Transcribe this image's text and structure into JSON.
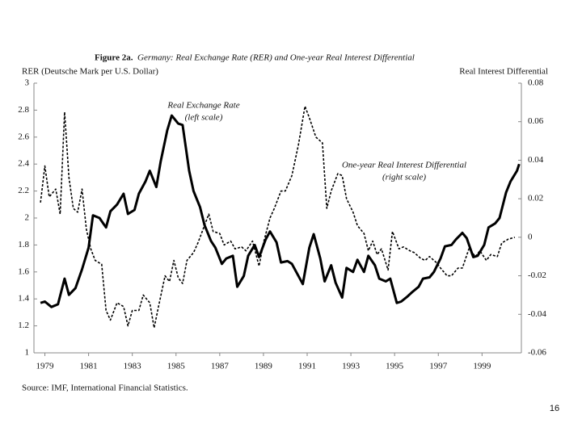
{
  "chart_data": {
    "type": "line",
    "title": "Figure 2a.",
    "subtitle": "Germany: Real Exchange Rate (RER) and One-year Real Interest Differential",
    "y_label": "RER (Deutsche Mark per U.S. Dollar)",
    "y2_label": "Real Interest Differential",
    "annotations": [
      "Real Exchange Rate",
      "(left scale)",
      "One-year Real Interest Differential",
      "(right scale)"
    ],
    "source": "Source: IMF, International Financial Statistics.",
    "page_number": "16",
    "xlim": [
      1978.5,
      2000.8
    ],
    "xticks": [
      1979,
      1981,
      1983,
      1985,
      1987,
      1989,
      1991,
      1993,
      1995,
      1997,
      1999
    ],
    "ylim": [
      1,
      3
    ],
    "yticks": [
      1,
      1.2,
      1.4,
      1.6,
      1.8,
      2,
      2.2,
      2.4,
      2.6,
      2.8,
      3
    ],
    "y2lim": [
      -0.06,
      0.08
    ],
    "y2ticks": [
      -0.06,
      -0.04,
      -0.02,
      0,
      0.02,
      0.04,
      0.06,
      0.08
    ],
    "series": [
      {
        "color": "#000000",
        "style": "solid",
        "x": [
          1978.8,
          1979.0,
          1979.3,
          1979.6,
          1979.9,
          1980.1,
          1980.4,
          1980.7,
          1981.0,
          1981.2,
          1981.5,
          1981.8,
          1982.0,
          1982.3,
          1982.6,
          1982.8,
          1983.1,
          1983.3,
          1983.6,
          1983.8,
          1984.1,
          1984.3,
          1984.6,
          1984.8,
          1985.1,
          1985.3,
          1985.6,
          1985.8,
          1986.1,
          1986.3,
          1986.6,
          1986.8,
          1987.1,
          1987.3,
          1987.6,
          1987.8,
          1988.1,
          1988.3,
          1988.6,
          1988.8,
          1989.1,
          1989.3,
          1989.6,
          1989.8,
          1990.1,
          1990.3,
          1990.6,
          1990.8,
          1991.1,
          1991.3,
          1991.6,
          1991.8,
          1992.1,
          1992.3,
          1992.6,
          1992.8,
          1993.1,
          1993.3,
          1993.6,
          1993.8,
          1994.1,
          1994.3,
          1994.6,
          1994.8,
          1995.1,
          1995.3,
          1995.6,
          1995.8,
          1996.1,
          1996.3,
          1996.6,
          1996.8,
          1997.1,
          1997.3,
          1997.6,
          1997.8,
          1998.1,
          1998.3,
          1998.6,
          1998.8,
          1999.1,
          1999.3,
          1999.6,
          1999.8,
          2000.1,
          2000.3,
          2000.6,
          2000.7
        ],
        "values": [
          1.37,
          1.38,
          1.34,
          1.36,
          1.55,
          1.43,
          1.48,
          1.62,
          1.78,
          2.02,
          2.0,
          1.93,
          2.05,
          2.1,
          2.18,
          2.03,
          2.06,
          2.18,
          2.27,
          2.35,
          2.23,
          2.42,
          2.65,
          2.76,
          2.7,
          2.69,
          2.35,
          2.2,
          2.08,
          1.95,
          1.83,
          1.78,
          1.66,
          1.7,
          1.72,
          1.49,
          1.57,
          1.72,
          1.8,
          1.71,
          1.84,
          1.9,
          1.82,
          1.67,
          1.68,
          1.66,
          1.57,
          1.51,
          1.78,
          1.88,
          1.7,
          1.53,
          1.65,
          1.52,
          1.41,
          1.63,
          1.6,
          1.69,
          1.6,
          1.72,
          1.65,
          1.55,
          1.53,
          1.55,
          1.37,
          1.38,
          1.42,
          1.45,
          1.49,
          1.55,
          1.56,
          1.6,
          1.7,
          1.79,
          1.8,
          1.84,
          1.89,
          1.85,
          1.71,
          1.72,
          1.8,
          1.93,
          1.96,
          2.0,
          2.19,
          2.27,
          2.35,
          2.4
        ]
      },
      {
        "color": "#000000",
        "style": "dashed",
        "axis": "y2",
        "x": [
          1978.8,
          1979.0,
          1979.2,
          1979.5,
          1979.7,
          1979.9,
          1980.1,
          1980.3,
          1980.5,
          1980.7,
          1980.9,
          1981.1,
          1981.3,
          1981.6,
          1981.8,
          1982.0,
          1982.3,
          1982.6,
          1982.8,
          1983.0,
          1983.3,
          1983.5,
          1983.8,
          1984.0,
          1984.2,
          1984.5,
          1984.7,
          1984.9,
          1985.1,
          1985.3,
          1985.5,
          1985.8,
          1986.0,
          1986.3,
          1986.5,
          1986.7,
          1987.0,
          1987.2,
          1987.5,
          1987.7,
          1988.0,
          1988.2,
          1988.5,
          1988.8,
          1989.0,
          1989.3,
          1989.5,
          1989.8,
          1990.0,
          1990.3,
          1990.6,
          1990.9,
          1991.1,
          1991.4,
          1991.7,
          1991.9,
          1992.1,
          1992.4,
          1992.6,
          1992.8,
          1993.1,
          1993.3,
          1993.6,
          1993.8,
          1994.0,
          1994.2,
          1994.4,
          1994.7,
          1994.9,
          1995.2,
          1995.4,
          1995.7,
          1995.9,
          1996.2,
          1996.4,
          1996.6,
          1996.9,
          1997.1,
          1997.4,
          1997.6,
          1997.9,
          1998.1,
          1998.4,
          1998.7,
          1998.9,
          1999.2,
          1999.4,
          1999.7,
          1999.9,
          2000.2,
          2000.5
        ],
        "values": [
          0.018,
          0.037,
          0.021,
          0.025,
          0.012,
          0.065,
          0.031,
          0.015,
          0.013,
          0.025,
          0.004,
          -0.006,
          -0.012,
          -0.014,
          -0.038,
          -0.043,
          -0.034,
          -0.036,
          -0.046,
          -0.038,
          -0.038,
          -0.03,
          -0.034,
          -0.047,
          -0.036,
          -0.02,
          -0.023,
          -0.012,
          -0.021,
          -0.024,
          -0.012,
          -0.008,
          -0.003,
          0.006,
          0.012,
          0.003,
          0.002,
          -0.004,
          -0.002,
          -0.006,
          -0.005,
          -0.007,
          -0.002,
          -0.015,
          -0.003,
          0.01,
          0.015,
          0.024,
          0.024,
          0.032,
          0.048,
          0.068,
          0.062,
          0.052,
          0.049,
          0.015,
          0.024,
          0.033,
          0.032,
          0.02,
          0.013,
          0.006,
          0.002,
          -0.007,
          -0.002,
          -0.009,
          -0.006,
          -0.017,
          0.003,
          -0.006,
          -0.005,
          -0.007,
          -0.008,
          -0.011,
          -0.012,
          -0.01,
          -0.013,
          -0.016,
          -0.02,
          -0.02,
          -0.016,
          -0.016,
          -0.006,
          -0.01,
          -0.007,
          -0.012,
          -0.009,
          -0.01,
          -0.003,
          -0.001,
          0.0
        ]
      }
    ]
  }
}
